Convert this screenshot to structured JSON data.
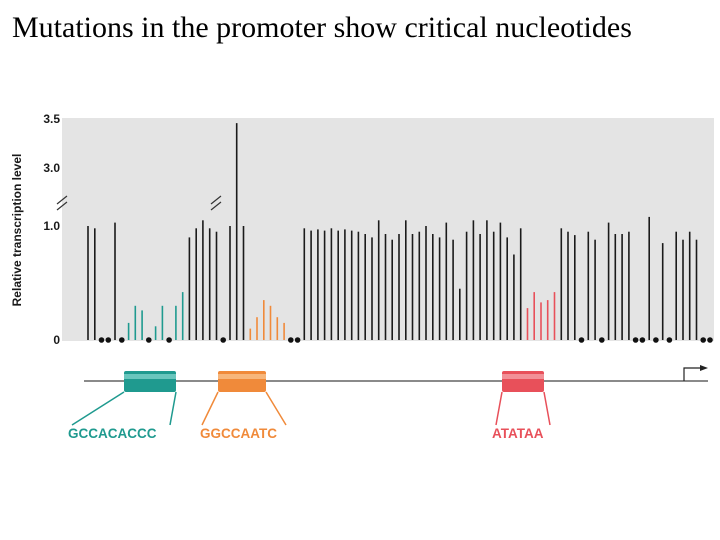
{
  "slide": {
    "title": "Mutations in the promoter show critical nucleotides"
  },
  "chart_data": {
    "type": "bar",
    "ylabel": "Relative transcription level",
    "y_ticks": [
      "0",
      "1.0",
      "3.0",
      "3.5"
    ],
    "ylim": [
      0,
      3.5
    ],
    "axis_break": [
      1.0,
      3.0
    ],
    "grid": false,
    "colors": {
      "background": "#e4e4e4",
      "normal": "#1a1a1a",
      "green": "#1f9a8f",
      "orange": "#f08a3a",
      "red": "#e8505a"
    },
    "series": [
      {
        "name": "",
        "points": [
          {
            "v": 1.0,
            "c": "k"
          },
          {
            "v": 0.98,
            "c": "k"
          },
          {
            "v": 0,
            "c": "k"
          },
          {
            "v": 0,
            "c": "k"
          },
          {
            "v": 1.03,
            "c": "k"
          },
          {
            "v": 0,
            "c": "k"
          },
          {
            "v": 0.15,
            "c": "g"
          },
          {
            "v": 0.3,
            "c": "g"
          },
          {
            "v": 0.26,
            "c": "g"
          },
          {
            "v": 0,
            "c": "k"
          },
          {
            "v": 0.12,
            "c": "g"
          },
          {
            "v": 0.3,
            "c": "g"
          },
          {
            "v": 0,
            "c": "k"
          },
          {
            "v": 0.3,
            "c": "g"
          },
          {
            "v": 0.42,
            "c": "g"
          },
          {
            "v": 0.9,
            "c": "k"
          },
          {
            "v": 0.98,
            "c": "k"
          },
          {
            "v": 1.05,
            "c": "k"
          },
          {
            "v": 0.98,
            "c": "k"
          },
          {
            "v": 0.95,
            "c": "k"
          },
          {
            "v": 0,
            "c": "k"
          },
          {
            "v": 1.0,
            "c": "k"
          },
          {
            "v": 3.45,
            "c": "k"
          },
          {
            "v": 1.0,
            "c": "k"
          },
          {
            "v": 0.1,
            "c": "o"
          },
          {
            "v": 0.2,
            "c": "o"
          },
          {
            "v": 0.35,
            "c": "o"
          },
          {
            "v": 0.3,
            "c": "o"
          },
          {
            "v": 0.2,
            "c": "o"
          },
          {
            "v": 0.15,
            "c": "o"
          },
          {
            "v": 0,
            "c": "k"
          },
          {
            "v": 0,
            "c": "k"
          },
          {
            "v": 0.98,
            "c": "k"
          },
          {
            "v": 0.96,
            "c": "k"
          },
          {
            "v": 0.97,
            "c": "k"
          },
          {
            "v": 0.96,
            "c": "k"
          },
          {
            "v": 0.98,
            "c": "k"
          },
          {
            "v": 0.96,
            "c": "k"
          },
          {
            "v": 0.97,
            "c": "k"
          },
          {
            "v": 0.96,
            "c": "k"
          },
          {
            "v": 0.95,
            "c": "k"
          },
          {
            "v": 0.93,
            "c": "k"
          },
          {
            "v": 0.9,
            "c": "k"
          },
          {
            "v": 1.05,
            "c": "k"
          },
          {
            "v": 0.93,
            "c": "k"
          },
          {
            "v": 0.88,
            "c": "k"
          },
          {
            "v": 0.93,
            "c": "k"
          },
          {
            "v": 1.05,
            "c": "k"
          },
          {
            "v": 0.93,
            "c": "k"
          },
          {
            "v": 0.95,
            "c": "k"
          },
          {
            "v": 1.0,
            "c": "k"
          },
          {
            "v": 0.93,
            "c": "k"
          },
          {
            "v": 0.9,
            "c": "k"
          },
          {
            "v": 1.03,
            "c": "k"
          },
          {
            "v": 0.88,
            "c": "k"
          },
          {
            "v": 0.45,
            "c": "k"
          },
          {
            "v": 0.95,
            "c": "k"
          },
          {
            "v": 1.05,
            "c": "k"
          },
          {
            "v": 0.93,
            "c": "k"
          },
          {
            "v": 1.05,
            "c": "k"
          },
          {
            "v": 0.95,
            "c": "k"
          },
          {
            "v": 1.03,
            "c": "k"
          },
          {
            "v": 0.9,
            "c": "k"
          },
          {
            "v": 0.75,
            "c": "k"
          },
          {
            "v": 0.98,
            "c": "k"
          },
          {
            "v": 0.28,
            "c": "r"
          },
          {
            "v": 0.42,
            "c": "r"
          },
          {
            "v": 0.33,
            "c": "r"
          },
          {
            "v": 0.35,
            "c": "r"
          },
          {
            "v": 0.42,
            "c": "r"
          },
          {
            "v": 0.98,
            "c": "k"
          },
          {
            "v": 0.95,
            "c": "k"
          },
          {
            "v": 0.92,
            "c": "k"
          },
          {
            "v": 0,
            "c": "k"
          },
          {
            "v": 0.95,
            "c": "k"
          },
          {
            "v": 0.88,
            "c": "k"
          },
          {
            "v": 0,
            "c": "k"
          },
          {
            "v": 1.03,
            "c": "k"
          },
          {
            "v": 0.93,
            "c": "k"
          },
          {
            "v": 0.93,
            "c": "k"
          },
          {
            "v": 0.95,
            "c": "k"
          },
          {
            "v": 0,
            "c": "k"
          },
          {
            "v": 0,
            "c": "k"
          },
          {
            "v": 1.08,
            "c": "k"
          },
          {
            "v": 0,
            "c": "k"
          },
          {
            "v": 0.85,
            "c": "k"
          },
          {
            "v": 0,
            "c": "k"
          },
          {
            "v": 0.95,
            "c": "k"
          },
          {
            "v": 0.88,
            "c": "k"
          },
          {
            "v": 0.95,
            "c": "k"
          },
          {
            "v": 0.88,
            "c": "k"
          },
          {
            "v": 0,
            "c": "k"
          },
          {
            "v": 0,
            "c": "k"
          }
        ]
      }
    ],
    "boxes": [
      {
        "sequence": "GCCACACCC",
        "color": "#1f9a8f"
      },
      {
        "sequence": "GGCCAATC",
        "color": "#f08a3a"
      },
      {
        "sequence": "ATATAA",
        "color": "#e8505a"
      }
    ]
  }
}
